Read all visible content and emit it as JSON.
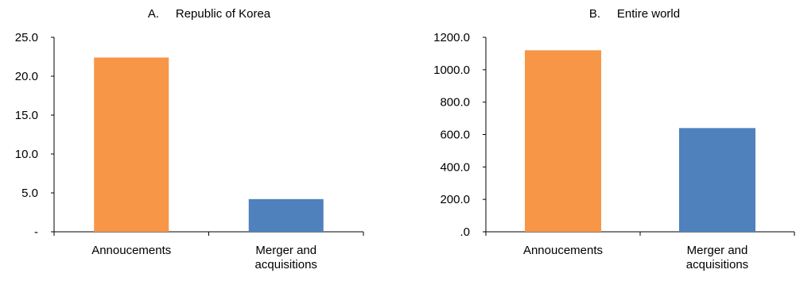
{
  "chart_data": [
    {
      "type": "bar",
      "title": "A.     Republic of Korea",
      "categories": [
        "Annoucements",
        "Merger and acquisitions"
      ],
      "category_lines": [
        [
          "Annoucements"
        ],
        [
          "Merger and",
          "acquisitions"
        ]
      ],
      "values": [
        22.4,
        4.2
      ],
      "colors": [
        "#F79646",
        "#4F81BD"
      ],
      "ylim": [
        0,
        25
      ],
      "yticks": [
        0,
        5,
        10,
        15,
        20,
        25
      ],
      "ytick_labels": [
        "-",
        "5.0",
        "10.0",
        "15.0",
        "20.0",
        "25.0"
      ],
      "xlabel": "",
      "ylabel": "",
      "grid": false,
      "legend": "none"
    },
    {
      "type": "bar",
      "title": "B.     Entire world",
      "categories": [
        "Annoucements",
        "Merger and acquisitions"
      ],
      "category_lines": [
        [
          "Annoucements"
        ],
        [
          "Merger and",
          "acquisitions"
        ]
      ],
      "values": [
        1120,
        640
      ],
      "colors": [
        "#F79646",
        "#4F81BD"
      ],
      "ylim": [
        0,
        1200
      ],
      "yticks": [
        0,
        200,
        400,
        600,
        800,
        1000,
        1200
      ],
      "ytick_labels": [
        ".0",
        "200.0",
        "400.0",
        "600.0",
        "800.0",
        "1000.0",
        "1200.0"
      ],
      "xlabel": "",
      "ylabel": "",
      "grid": false,
      "legend": "none"
    }
  ]
}
